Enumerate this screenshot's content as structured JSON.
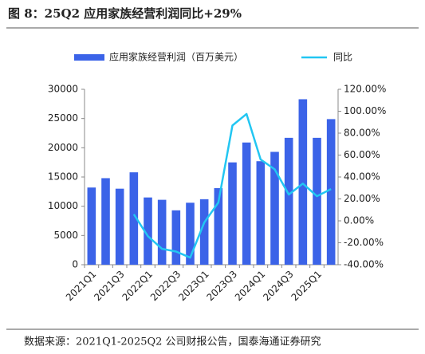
{
  "chart_data": {
    "type": "bar-line",
    "title": "图 8：25Q2 应用家族经营利润同比+29%",
    "source": "数据来源：2021Q1-2025Q2 公司财报公告，国泰海通证券研究",
    "categories": [
      "2021Q1",
      null,
      "2021Q3",
      null,
      "2022Q1",
      null,
      "2022Q3",
      null,
      "2023Q1",
      null,
      "2023Q3",
      null,
      "2024Q1",
      null,
      "2024Q3",
      null,
      "2025Q1",
      null
    ],
    "series": [
      {
        "name": "应用家族经营利润（百万美元）",
        "type": "bar",
        "color": "#3b63e8",
        "values": [
          13200,
          14800,
          13000,
          15800,
          11500,
          11100,
          9300,
          10600,
          11200,
          13100,
          17500,
          20900,
          17700,
          19300,
          21700,
          28300,
          21700,
          24900
        ]
      },
      {
        "name": "同比",
        "type": "line",
        "axis": "y2",
        "color": "#22c6f2",
        "values": [
          null,
          null,
          null,
          6,
          -14,
          -25.5,
          -28,
          -33.5,
          -1.5,
          16.7,
          87,
          97.5,
          56,
          47,
          24,
          34,
          22.5,
          29
        ]
      }
    ],
    "ylim": [
      0,
      30000
    ],
    "yticks": [
      0,
      5000,
      10000,
      15000,
      20000,
      25000,
      30000
    ],
    "y2lim": [
      -40,
      120
    ],
    "y2ticks": [
      {
        "value": -40,
        "label": "-40.00%"
      },
      {
        "value": -20,
        "label": "-20.00%"
      },
      {
        "value": 0,
        "label": "0.00%"
      },
      {
        "value": 20,
        "label": "20.00%"
      },
      {
        "value": 40,
        "label": "40.00%"
      },
      {
        "value": 60,
        "label": "60.00%"
      },
      {
        "value": 80,
        "label": "80.00%"
      },
      {
        "value": 100,
        "label": "100.00%"
      },
      {
        "value": 120,
        "label": "120.00%"
      }
    ]
  }
}
